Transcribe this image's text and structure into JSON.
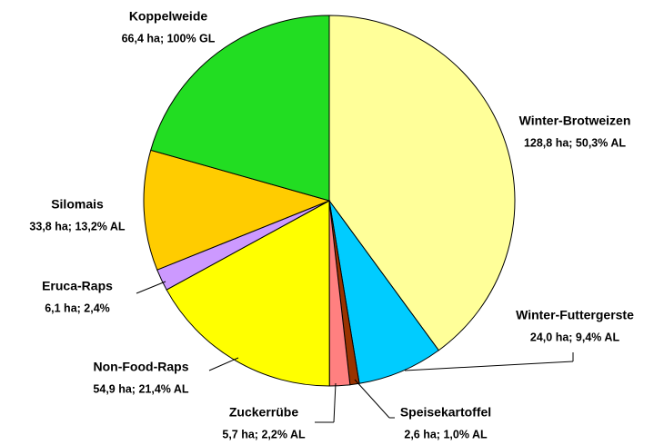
{
  "chart_data": {
    "type": "pie",
    "categories": [
      "Winter-Brotweizen",
      "Winter-Futtergerste",
      "Speisekartoffel",
      "Zuckerrübe",
      "Non-Food-Raps",
      "Eruca-Raps",
      "Silomais",
      "Koppelweide"
    ],
    "values": [
      128.8,
      24.0,
      2.6,
      5.7,
      54.9,
      6.1,
      33.8,
      66.4
    ],
    "value_labels": [
      "128,8 ha;  50,3% AL",
      "24,0 ha; 9,4% AL",
      "2,6 ha; 1,0% AL",
      "5,7 ha; 2,2% AL",
      "54,9 ha; 21,4% AL",
      "6,1 ha; 2,4%",
      "33,8 ha; 13,2% AL",
      "66,4 ha; 100% GL"
    ],
    "colors": [
      "#ffff99",
      "#00ccff",
      "#993300",
      "#ff8080",
      "#ffff00",
      "#cc99ff",
      "#ffcc00",
      "#22dd22"
    ]
  }
}
